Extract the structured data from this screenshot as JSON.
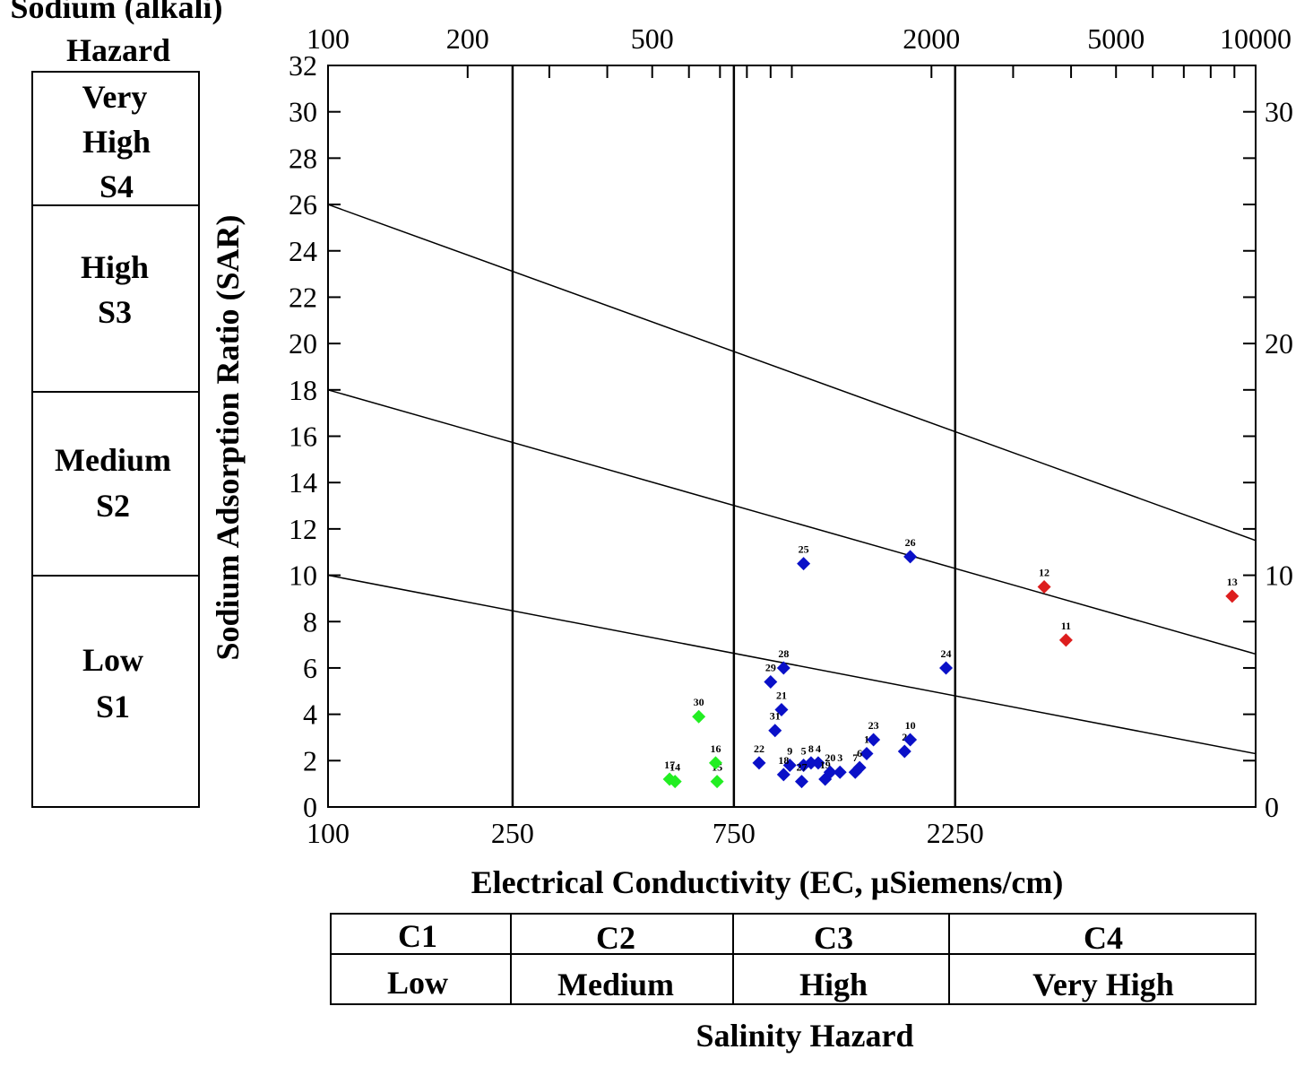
{
  "sodium_hazard": {
    "title_line1": "Sodium (alkali)",
    "title_line2": "Hazard",
    "classes": [
      {
        "line1": "Very",
        "line2": "High",
        "line3": "S4"
      },
      {
        "line1": "High",
        "line2": "S3"
      },
      {
        "line1": "Medium",
        "line2": "S2"
      },
      {
        "line1": "Low",
        "line2": "S1"
      }
    ]
  },
  "salinity_hazard": {
    "title": "Salinity Hazard",
    "classes": [
      {
        "code": "C1",
        "label": "Low"
      },
      {
        "code": "C2",
        "label": "Medium"
      },
      {
        "code": "C3",
        "label": "High"
      },
      {
        "code": "C4",
        "label": "Very High"
      }
    ]
  },
  "colors": {
    "blue": "#0a10c8",
    "green": "#22ee22",
    "red": "#dd1e1e",
    "line": "#000000"
  },
  "chart_data": {
    "type": "scatter",
    "xlabel": "Electrical Conductivity (EC, µSiemens/cm)",
    "ylabel": "Sodium Adsorption Ratio (SAR)",
    "x_scale": "log",
    "xlim": [
      100,
      10000
    ],
    "ylim": [
      0,
      32
    ],
    "y_right_lim": [
      0,
      32
    ],
    "x_top_ticks": [
      {
        "value": 100,
        "label": "100"
      },
      {
        "value": 200,
        "label": "200"
      },
      {
        "value": 500,
        "label": "500"
      },
      {
        "value": 2000,
        "label": "2000"
      },
      {
        "value": 5000,
        "label": "5000"
      },
      {
        "value": 10000,
        "label": "10000"
      }
    ],
    "x_bottom_ticks": [
      {
        "value": 100,
        "label": "100"
      },
      {
        "value": 250,
        "label": "250"
      },
      {
        "value": 750,
        "label": "750"
      },
      {
        "value": 2250,
        "label": "2250"
      }
    ],
    "y_left_ticks": [
      0,
      2,
      4,
      6,
      8,
      10,
      12,
      14,
      16,
      18,
      20,
      22,
      24,
      26,
      28,
      30,
      32
    ],
    "y_right_ticks": [
      0,
      10,
      20,
      30
    ],
    "class_boundaries_ec": [
      250,
      750,
      2250
    ],
    "hazard_lines": [
      {
        "x": [
          100,
          10000
        ],
        "y": [
          10,
          2.3
        ]
      },
      {
        "x": [
          100,
          10000
        ],
        "y": [
          18,
          6.6
        ]
      },
      {
        "x": [
          100,
          10000
        ],
        "y": [
          26,
          11.5
        ]
      }
    ],
    "series": [
      {
        "color": "#22ee22",
        "points": [
          {
            "label": "14",
            "x": 560,
            "y": 1.1
          },
          {
            "label": "15",
            "x": 690,
            "y": 1.1
          },
          {
            "label": "16",
            "x": 685,
            "y": 1.9
          },
          {
            "label": "17",
            "x": 545,
            "y": 1.2
          },
          {
            "label": "30",
            "x": 630,
            "y": 3.9
          }
        ]
      },
      {
        "color": "#0a10c8",
        "points": [
          {
            "label": "1",
            "x": 1450,
            "y": 2.3
          },
          {
            "label": "2",
            "x": 1750,
            "y": 2.4
          },
          {
            "label": "3",
            "x": 1270,
            "y": 1.5
          },
          {
            "label": "4",
            "x": 1140,
            "y": 1.9
          },
          {
            "label": "5",
            "x": 1060,
            "y": 1.8
          },
          {
            "label": "6",
            "x": 1400,
            "y": 1.7
          },
          {
            "label": "7",
            "x": 1370,
            "y": 1.5
          },
          {
            "label": "8",
            "x": 1100,
            "y": 1.9
          },
          {
            "label": "9",
            "x": 990,
            "y": 1.8
          },
          {
            "label": "10",
            "x": 1800,
            "y": 2.9
          },
          {
            "label": "11",
            "x": 3900,
            "y": 7.2
          },
          {
            "label": "12",
            "x": 3500,
            "y": 9.5
          },
          {
            "label": "13",
            "x": 8900,
            "y": 9.1
          },
          {
            "label": "18",
            "x": 960,
            "y": 1.4
          },
          {
            "label": "19",
            "x": 1180,
            "y": 1.2
          },
          {
            "label": "20",
            "x": 1210,
            "y": 1.5
          },
          {
            "label": "21",
            "x": 950,
            "y": 4.2
          },
          {
            "label": "22",
            "x": 850,
            "y": 1.9
          },
          {
            "label": "23",
            "x": 1500,
            "y": 2.9
          },
          {
            "label": "24",
            "x": 2150,
            "y": 6.0
          },
          {
            "label": "25",
            "x": 1060,
            "y": 10.5
          },
          {
            "label": "26",
            "x": 1800,
            "y": 10.8
          },
          {
            "label": "27",
            "x": 1050,
            "y": 1.1
          },
          {
            "label": "28",
            "x": 960,
            "y": 6.0
          },
          {
            "label": "29",
            "x": 900,
            "y": 5.4
          },
          {
            "label": "31",
            "x": 920,
            "y": 3.3
          }
        ]
      }
    ],
    "red_point_labels": [
      "11",
      "12",
      "13"
    ]
  }
}
